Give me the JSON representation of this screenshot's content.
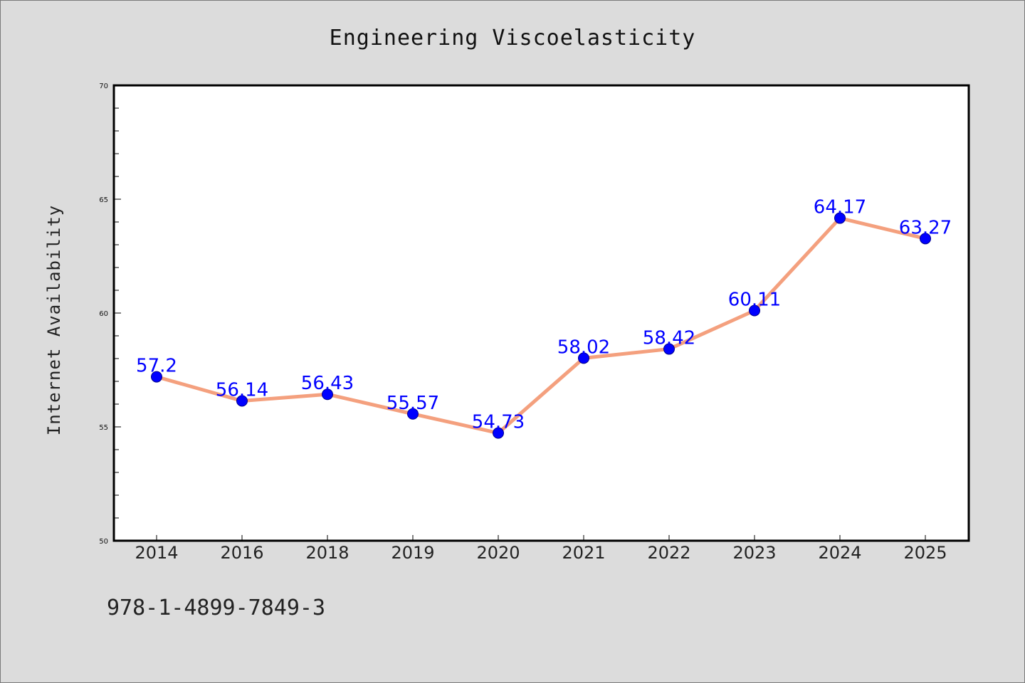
{
  "colors": {
    "background": "#dcdcdc",
    "plot_area": "#ffffff",
    "line": "#f4a07e",
    "marker": "#0000ff",
    "data_label": "#0000ff"
  },
  "footnote": "978-1-4899-7849-3",
  "chart_data": {
    "type": "line",
    "title": "Engineering Viscoelasticity",
    "xlabel": "",
    "ylabel": "Internet Availability",
    "categories": [
      "2014",
      "2016",
      "2018",
      "2019",
      "2020",
      "2021",
      "2022",
      "2023",
      "2024",
      "2025"
    ],
    "series": [
      {
        "values": [
          57.2,
          56.14,
          56.43,
          55.57,
          54.73,
          58.02,
          58.42,
          60.11,
          64.17,
          63.27
        ],
        "labels": [
          "57.2",
          "56.14",
          "56.43",
          "55.57",
          "54.73",
          "58.02",
          "58.42",
          "60.11",
          "64.17",
          "63.27"
        ]
      }
    ],
    "ylim": [
      50,
      70
    ],
    "yticks": [
      50,
      55,
      60,
      65,
      70
    ],
    "grid": false,
    "legend": "none"
  }
}
